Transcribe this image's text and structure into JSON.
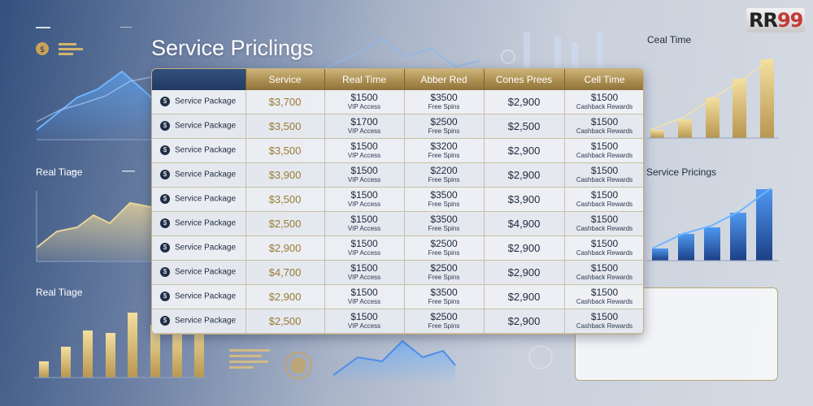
{
  "logo": {
    "text": "RR",
    "num": "99"
  },
  "page_title": "Service Priclings",
  "side_labels": {
    "top_right": "Ceal Time",
    "left_middle": "Real Tiage",
    "left_bottom": "Real Tiage",
    "right_middle": "Service Pricings"
  },
  "table": {
    "headers": [
      "",
      "Service",
      "Real Time",
      "Abber Red",
      "Cones Prees",
      "Cell Time"
    ],
    "rows": [
      {
        "package": "Service Package",
        "service": "$3,700",
        "real_time": "$1500",
        "real_time_sub": "VIP Access",
        "abber": "$3500",
        "abber_sub": "Free Spins",
        "cones": "$2,900",
        "cell": "$1500",
        "cell_sub": "Cashback Rewards"
      },
      {
        "package": "Service Package",
        "service": "$3,500",
        "real_time": "$1700",
        "real_time_sub": "VIP Access",
        "abber": "$2500",
        "abber_sub": "Free Spins",
        "cones": "$2,500",
        "cell": "$1500",
        "cell_sub": "Cashback Rewards"
      },
      {
        "package": "Service Package",
        "service": "$3,500",
        "real_time": "$1500",
        "real_time_sub": "VIP Access",
        "abber": "$3200",
        "abber_sub": "Free Spins",
        "cones": "$2,900",
        "cell": "$1500",
        "cell_sub": "Cashback Rewards"
      },
      {
        "package": "Service Package",
        "service": "$3,900",
        "real_time": "$1500",
        "real_time_sub": "VIP Access",
        "abber": "$2200",
        "abber_sub": "Free Spins",
        "cones": "$2,900",
        "cell": "$1500",
        "cell_sub": "Cashback Rewards"
      },
      {
        "package": "Service Package",
        "service": "$3,500",
        "real_time": "$1500",
        "real_time_sub": "VIP Access",
        "abber": "$3500",
        "abber_sub": "Free Spins",
        "cones": "$3,900",
        "cell": "$1500",
        "cell_sub": "Cashback Rewards"
      },
      {
        "package": "Service Package",
        "service": "$2,500",
        "real_time": "$1500",
        "real_time_sub": "VIP Access",
        "abber": "$3500",
        "abber_sub": "Free Spins",
        "cones": "$4,900",
        "cell": "$1500",
        "cell_sub": "Cashback Rewards"
      },
      {
        "package": "Service Package",
        "service": "$2,900",
        "real_time": "$1500",
        "real_time_sub": "VIP Access",
        "abber": "$2500",
        "abber_sub": "Free Spins",
        "cones": "$2,900",
        "cell": "$1500",
        "cell_sub": "Cashback Rewards"
      },
      {
        "package": "Service Package",
        "service": "$4,700",
        "real_time": "$1500",
        "real_time_sub": "VIP Access",
        "abber": "$2500",
        "abber_sub": "Free Spins",
        "cones": "$2,900",
        "cell": "$1500",
        "cell_sub": "Cashback Rewards"
      },
      {
        "package": "Service Package",
        "service": "$2,900",
        "real_time": "$1500",
        "real_time_sub": "VIP Access",
        "abber": "$3500",
        "abber_sub": "Free Spins",
        "cones": "$2,900",
        "cell": "$1500",
        "cell_sub": "Cashback Rewards"
      },
      {
        "package": "Service Package",
        "service": "$2,500",
        "real_time": "$1500",
        "real_time_sub": "VIP Access",
        "abber": "$2500",
        "abber_sub": "Free Spins",
        "cones": "$2,900",
        "cell": "$1500",
        "cell_sub": "Cashback Rewards"
      }
    ]
  },
  "icons": {
    "row_icon": "dollar-coin-icon",
    "header_icon": "dollar-coin-icon"
  },
  "colors": {
    "accent_gold": "#b89a5b",
    "navy": "#213a63",
    "bar_blue": "#2f63b5"
  }
}
